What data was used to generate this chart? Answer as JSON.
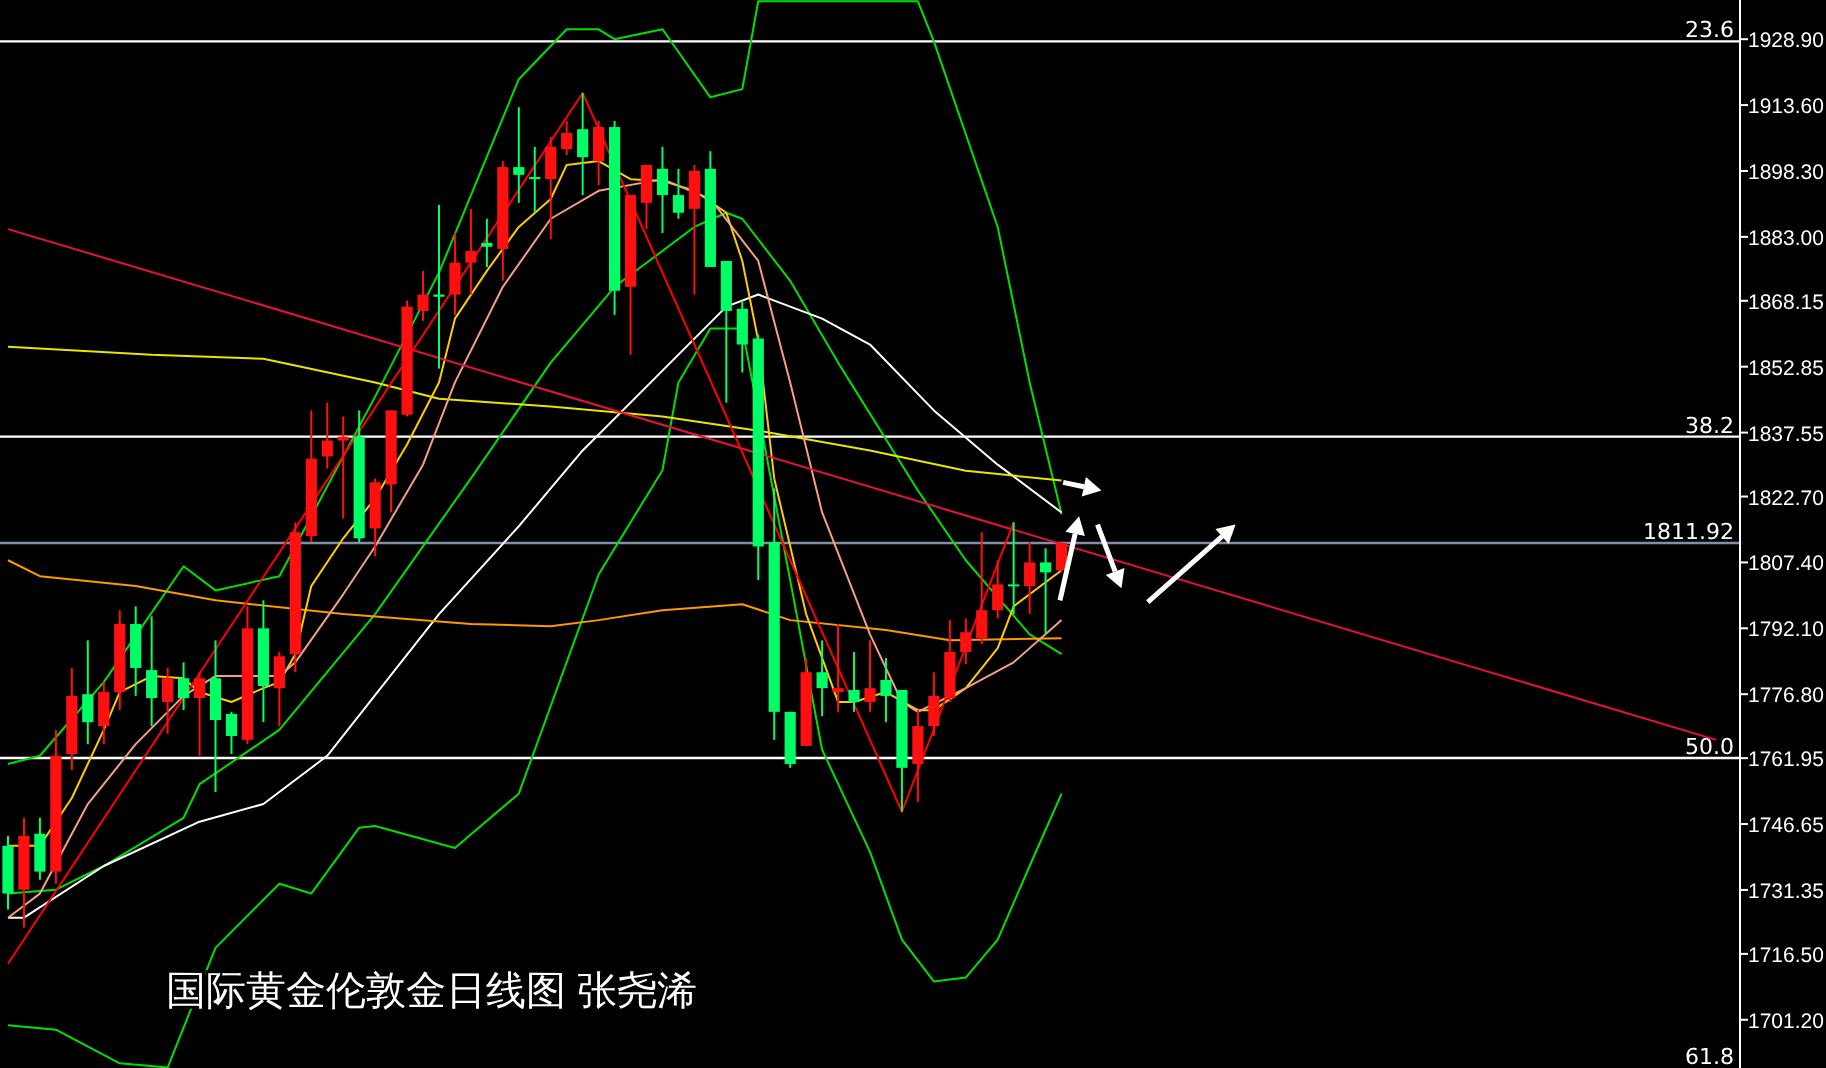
{
  "chart_data": {
    "type": "candlestick",
    "title": "国际黄金伦敦金日线图 张尧浠",
    "categories": [
      null,
      null,
      null,
      null,
      null,
      null,
      null,
      null,
      null,
      null,
      null,
      null,
      null,
      null,
      null,
      null,
      null,
      null,
      null,
      null,
      null,
      null,
      null,
      null,
      null,
      null,
      null,
      null,
      null,
      null,
      null,
      null,
      null,
      null,
      null,
      null,
      null,
      null,
      null,
      null,
      null,
      null,
      null,
      null,
      null,
      null,
      null,
      null,
      null,
      null,
      null,
      null,
      null,
      null,
      null,
      null,
      null,
      null,
      null,
      null,
      null,
      null,
      null,
      null,
      null,
      null,
      null,
      null,
      null,
      null,
      null,
      null,
      null,
      null,
      null,
      null,
      null,
      null,
      null,
      null,
      null,
      null,
      null,
      null,
      null,
      null,
      null,
      null,
      null,
      null,
      null,
      null,
      null,
      null,
      null,
      null,
      null,
      null,
      null,
      null,
      null,
      null,
      null,
      null,
      null,
      null,
      null,
      null,
      null
    ],
    "ohlc": [
      [
        1741.6,
        1743.9,
        1726.8,
        1730.5
      ],
      [
        1731.4,
        1748.1,
        1722.6,
        1743.9
      ],
      [
        1744.4,
        1748.1,
        1733.7,
        1735.6
      ],
      [
        1735.6,
        1768.5,
        1732.8,
        1762.5
      ],
      [
        1762.9,
        1782.9,
        1759.2,
        1776.4
      ],
      [
        1776.8,
        1789.3,
        1765.2,
        1770.3
      ],
      [
        1769.4,
        1779.6,
        1765.2,
        1777.3
      ],
      [
        1777.3,
        1796.3,
        1773.1,
        1793.1
      ],
      [
        1793.1,
        1797.2,
        1776.4,
        1782.9
      ],
      [
        1782.4,
        1794.9,
        1769.4,
        1775.9
      ],
      [
        1775.0,
        1782.9,
        1767.6,
        1780.5
      ],
      [
        1780.5,
        1784.2,
        1773.1,
        1775.9
      ],
      [
        1775.9,
        1781.9,
        1762.5,
        1780.5
      ],
      [
        1780.5,
        1789.3,
        1754.1,
        1770.8
      ],
      [
        1772.2,
        1772.7,
        1762.9,
        1767.1
      ],
      [
        1766.2,
        1797.2,
        1765.2,
        1792.1
      ],
      [
        1792.1,
        1798.6,
        1770.3,
        1778.7
      ],
      [
        1778.2,
        1786.6,
        1769.4,
        1785.6
      ],
      [
        1786.1,
        1816.7,
        1781.9,
        1814.4
      ],
      [
        1813.5,
        1842.7,
        1812.1,
        1831.5
      ],
      [
        1832.0,
        1844.5,
        1829.2,
        1835.7
      ],
      [
        1835.7,
        1841.3,
        1817.6,
        1836.6
      ],
      [
        1836.6,
        1842.7,
        1812.1,
        1813.0
      ],
      [
        1815.3,
        1826.9,
        1808.8,
        1826.0
      ],
      [
        1825.5,
        1842.7,
        1819.0,
        1842.7
      ],
      [
        1841.7,
        1868.2,
        1841.3,
        1866.8
      ],
      [
        1865.8,
        1875.1,
        1863.5,
        1869.6
      ],
      [
        1869.6,
        1890.4,
        1852.4,
        1869.1
      ],
      [
        1869.6,
        1883.9,
        1864.9,
        1877.0
      ],
      [
        1877.0,
        1889.5,
        1869.6,
        1879.7
      ],
      [
        1881.6,
        1887.2,
        1876.0,
        1880.7
      ],
      [
        1880.2,
        1900.6,
        1872.8,
        1899.2
      ],
      [
        1899.2,
        1913.1,
        1890.9,
        1897.4
      ],
      [
        1896.9,
        1903.9,
        1888.6,
        1896.4
      ],
      [
        1896.4,
        1906.2,
        1882.5,
        1903.9
      ],
      [
        1903.4,
        1909.9,
        1902.0,
        1907.1
      ],
      [
        1908.0,
        1916.4,
        1892.7,
        1901.5
      ],
      [
        1900.6,
        1909.9,
        1895.0,
        1908.5
      ],
      [
        1908.5,
        1909.9,
        1864.9,
        1870.5
      ],
      [
        1871.4,
        1892.7,
        1855.6,
        1892.7
      ],
      [
        1890.9,
        1899.7,
        1884.8,
        1899.7
      ],
      [
        1898.8,
        1903.9,
        1883.9,
        1892.7
      ],
      [
        1892.7,
        1898.8,
        1887.2,
        1888.6
      ],
      [
        1889.5,
        1899.7,
        1869.6,
        1898.3
      ],
      [
        1898.8,
        1902.9,
        1876.0,
        1876.0
      ],
      [
        1877.4,
        1877.4,
        1844.5,
        1865.8
      ],
      [
        1866.3,
        1868.2,
        1851.5,
        1858.0
      ],
      [
        1859.4,
        1860.3,
        1803.3,
        1811.1
      ],
      [
        1812.1,
        1824.6,
        1766.2,
        1772.7
      ],
      [
        1772.7,
        1772.7,
        1759.7,
        1760.6
      ],
      [
        1764.8,
        1785.2,
        1764.8,
        1781.9
      ],
      [
        1781.9,
        1789.3,
        1771.7,
        1778.2
      ],
      [
        1777.3,
        1793.1,
        1772.7,
        1778.2
      ],
      [
        1777.8,
        1786.6,
        1772.7,
        1775.0
      ],
      [
        1775.0,
        1789.3,
        1772.7,
        1778.2
      ],
      [
        1780.1,
        1785.2,
        1770.3,
        1776.4
      ],
      [
        1777.8,
        1777.8,
        1749.5,
        1759.7
      ],
      [
        1760.6,
        1773.1,
        1751.8,
        1769.4
      ],
      [
        1769.4,
        1781.9,
        1767.1,
        1776.4
      ],
      [
        1775.9,
        1794.0,
        1775.0,
        1786.6
      ],
      [
        1786.6,
        1794.4,
        1783.8,
        1791.2
      ],
      [
        1789.8,
        1814.4,
        1788.4,
        1796.3
      ],
      [
        1796.3,
        1807.9,
        1794.4,
        1802.3
      ],
      [
        1802.3,
        1816.7,
        1795.4,
        1801.9
      ],
      [
        1801.9,
        1812.1,
        1795.4,
        1807.4
      ],
      [
        1807.4,
        1810.7,
        1790.7,
        1805.1
      ],
      [
        1805.6,
        1812.1,
        1805.1,
        1811.9
      ],
      null,
      null,
      null,
      null,
      null,
      null,
      null,
      null,
      null,
      null,
      null,
      null,
      null,
      null,
      null,
      null,
      null,
      null,
      null,
      null,
      null,
      null,
      null,
      null,
      null,
      null,
      null,
      null,
      null,
      null,
      null,
      null,
      null,
      null,
      null,
      null,
      null,
      null,
      null,
      null,
      null,
      null
    ],
    "series": [
      {
        "type": "line",
        "color": "#00e000",
        "values": [
          1760.6,
          null,
          1762.5,
          null,
          null,
          null,
          1779.6,
          null,
          null,
          null,
          null,
          1806.5,
          null,
          1800.9,
          null,
          null,
          null,
          1804.2,
          null,
          null,
          null,
          null,
          null,
          1845.9,
          null,
          null,
          null,
          1874.7,
          null,
          null,
          null,
          null,
          1919.6,
          null,
          null,
          1931.2,
          null,
          1931.2,
          1928.9,
          null,
          null,
          1931.2,
          null,
          null,
          1915.4,
          null,
          1917.3,
          1937.7,
          null,
          null,
          null,
          null,
          null,
          null,
          null,
          null,
          null,
          1937.7,
          1928.4,
          null,
          null,
          null,
          1885.3,
          null,
          1849.2,
          null,
          1818.6,
          null,
          null,
          null,
          null,
          null,
          null,
          null,
          null,
          null,
          null,
          null,
          null,
          null,
          null,
          null,
          null,
          null,
          null,
          null,
          null,
          null,
          null,
          null,
          null,
          null,
          null,
          null,
          null,
          null,
          null,
          null,
          null,
          null,
          null,
          null,
          null,
          null,
          null,
          null,
          null,
          null,
          null
        ]
      },
      {
        "type": "line",
        "color": "#00e000",
        "values": [
          1730.5,
          null,
          null,
          1731.4,
          null,
          null,
          1736.9,
          null,
          null,
          null,
          null,
          1748.1,
          1755.9,
          null,
          null,
          null,
          null,
          1768.5,
          null,
          null,
          null,
          null,
          null,
          1795.4,
          null,
          null,
          null,
          null,
          null,
          1826.9,
          null,
          null,
          null,
          null,
          1853.8,
          null,
          null,
          null,
          1871.4,
          null,
          null,
          null,
          null,
          1885.3,
          null,
          1888.6,
          1887.2,
          null,
          null,
          1872.8,
          null,
          null,
          1853.8,
          null,
          null,
          null,
          null,
          1824.1,
          null,
          null,
          1807.9,
          null,
          null,
          null,
          1790.7,
          null,
          1786.1,
          null,
          null,
          null,
          null,
          null,
          null,
          null,
          null,
          null,
          null,
          null,
          null,
          null,
          null,
          null,
          null,
          null,
          null,
          null,
          null,
          null,
          null,
          null,
          null,
          null,
          null,
          null,
          null,
          null,
          null,
          null,
          null,
          null,
          null,
          null,
          null,
          null,
          null,
          null,
          null,
          null,
          null
        ]
      },
      {
        "type": "line",
        "color": "#00e000",
        "values": [
          1699.9,
          null,
          null,
          1698.9,
          null,
          null,
          null,
          1691.1,
          null,
          null,
          1690.1,
          null,
          null,
          1717.9,
          null,
          null,
          null,
          1732.8,
          null,
          1730.5,
          null,
          null,
          1745.8,
          1746.2,
          null,
          null,
          null,
          null,
          1741.1,
          null,
          null,
          null,
          1753.7,
          null,
          null,
          null,
          null,
          1804.6,
          null,
          null,
          null,
          1828.8,
          1849.2,
          null,
          1861.7,
          null,
          1861.7,
          null,
          null,
          1803.3,
          null,
          1763.9,
          null,
          null,
          1740.2,
          null,
          1719.8,
          null,
          1710.1,
          null,
          1711.0,
          null,
          1719.8,
          null,
          1736.9,
          null,
          1753.7,
          null,
          null,
          null,
          null,
          null,
          null,
          null,
          null,
          null,
          null,
          null,
          null,
          null,
          null,
          null,
          null,
          null,
          null,
          null,
          null,
          null,
          null,
          null,
          null,
          null,
          null,
          null,
          null,
          null,
          null,
          null,
          null,
          null,
          null,
          null,
          null,
          null,
          null,
          null,
          null,
          null,
          null
        ]
      },
      {
        "type": "line",
        "color": "#ffffff",
        "values": [
          1724.9,
          1724.9,
          null,
          null,
          null,
          null,
          1736.9,
          null,
          null,
          null,
          null,
          null,
          1747.2,
          null,
          null,
          null,
          1751.3,
          null,
          null,
          null,
          1762.5,
          null,
          null,
          null,
          null,
          null,
          null,
          1795.4,
          null,
          null,
          null,
          null,
          1815.8,
          null,
          null,
          null,
          1833.4,
          null,
          null,
          1844.5,
          null,
          null,
          null,
          null,
          null,
          1866.8,
          null,
          1869.6,
          null,
          null,
          null,
          1864.0,
          null,
          null,
          1858.0,
          null,
          null,
          null,
          1842.7,
          null,
          null,
          null,
          1830.1,
          null,
          null,
          null,
          1819.0,
          null,
          null,
          null,
          null,
          null,
          null,
          null,
          null,
          null,
          null,
          null,
          null,
          null,
          null,
          null,
          null,
          null,
          null,
          null,
          null,
          null,
          null,
          null,
          null,
          null,
          null,
          null,
          null,
          null,
          null,
          null,
          null,
          null,
          null,
          null,
          null,
          null,
          null,
          null,
          null,
          null,
          null
        ]
      },
      {
        "type": "line",
        "color": "#e6e600",
        "values": [
          1857.5,
          null,
          null,
          null,
          null,
          null,
          null,
          null,
          null,
          1855.6,
          null,
          null,
          null,
          null,
          null,
          null,
          1854.7,
          null,
          null,
          null,
          null,
          null,
          null,
          1849.2,
          null,
          null,
          null,
          1845.4,
          null,
          null,
          null,
          null,
          null,
          null,
          1843.6,
          null,
          null,
          null,
          null,
          null,
          null,
          1841.3,
          null,
          null,
          null,
          null,
          null,
          1838.0,
          null,
          null,
          null,
          null,
          null,
          null,
          1833.4,
          null,
          null,
          null,
          null,
          null,
          1828.7,
          null,
          null,
          null,
          null,
          null,
          1826.4,
          null,
          null,
          null,
          null,
          null,
          null,
          null,
          null,
          null,
          null,
          null,
          null,
          null,
          null,
          null,
          null,
          null,
          null,
          null,
          null,
          null,
          null,
          null,
          null,
          null,
          null,
          null,
          null,
          null,
          null,
          null,
          null,
          null,
          null,
          null,
          null,
          null,
          null,
          null,
          null,
          null,
          null
        ]
      },
      {
        "type": "line",
        "color": "#ff9900",
        "values": [
          1807.9,
          null,
          1804.2,
          null,
          null,
          null,
          null,
          null,
          1801.9,
          null,
          null,
          null,
          null,
          1798.6,
          null,
          null,
          null,
          null,
          null,
          null,
          null,
          1795.4,
          null,
          null,
          null,
          null,
          null,
          null,
          null,
          1793.1,
          null,
          null,
          null,
          null,
          1792.6,
          null,
          null,
          1794.0,
          null,
          null,
          null,
          1796.3,
          null,
          null,
          null,
          null,
          1797.7,
          null,
          null,
          1794.0,
          null,
          null,
          null,
          null,
          null,
          1791.7,
          null,
          null,
          null,
          1789.3,
          null,
          null,
          null,
          null,
          null,
          null,
          1789.8,
          null,
          null,
          null,
          null,
          null,
          null,
          null,
          null,
          null,
          null,
          null,
          null,
          null,
          null,
          null,
          null,
          null,
          null,
          null,
          null,
          null,
          null,
          null,
          null,
          null,
          null,
          null,
          null,
          null,
          null,
          null,
          null,
          null,
          null,
          null,
          null,
          null,
          null,
          null,
          null,
          null,
          null
        ]
      },
      {
        "type": "line",
        "color": "#ffcc00",
        "values": [
          1741.6,
          null,
          1741.6,
          null,
          1752.7,
          null,
          1768.5,
          1777.3,
          null,
          1781.0,
          null,
          1780.5,
          1777.3,
          null,
          1775.0,
          null,
          1778.2,
          1779.6,
          1786.1,
          1801.9,
          null,
          1813.0,
          null,
          1822.3,
          null,
          1834.8,
          null,
          1849.2,
          1864.0,
          null,
          1875.1,
          null,
          1885.3,
          null,
          1891.8,
          1899.7,
          null,
          1900.6,
          null,
          1896.4,
          null,
          1896.0,
          null,
          1893.7,
          null,
          1888.6,
          1877.4,
          1858.9,
          1826.9,
          null,
          1795.4,
          null,
          1775.0,
          1775.0,
          null,
          1777.3,
          null,
          1773.1,
          1773.1,
          null,
          1778.2,
          null,
          1787.5,
          1797.2,
          null,
          null,
          1805.6,
          null,
          null,
          null,
          null,
          null,
          null,
          null,
          null,
          null,
          null,
          null,
          null,
          null,
          null,
          null,
          null,
          null,
          null,
          null,
          null,
          null,
          null,
          null,
          null,
          null,
          null,
          null,
          null,
          null,
          null,
          null,
          null,
          null,
          null,
          null,
          null,
          null,
          null,
          null,
          null,
          null,
          null
        ]
      },
      {
        "type": "line",
        "color": "#f4a080",
        "values": [
          1724.9,
          null,
          1730.5,
          null,
          null,
          1751.3,
          null,
          null,
          1765.2,
          null,
          null,
          1776.4,
          null,
          1781.0,
          null,
          null,
          null,
          1781.0,
          1784.2,
          null,
          null,
          1800.0,
          null,
          1811.1,
          null,
          null,
          1830.1,
          null,
          1849.2,
          null,
          null,
          1871.4,
          null,
          null,
          1887.2,
          null,
          null,
          1893.7,
          null,
          null,
          null,
          1896.4,
          null,
          null,
          1891.8,
          null,
          null,
          1877.4,
          null,
          1849.2,
          null,
          1819.0,
          null,
          null,
          1790.7,
          null,
          1775.0,
          1772.7,
          null,
          null,
          1778.2,
          null,
          null,
          1784.2,
          null,
          null,
          1794.0,
          null,
          null,
          null,
          null,
          null,
          null,
          null,
          null,
          null,
          null,
          null,
          null,
          null,
          null,
          null,
          null,
          null,
          null,
          null,
          null,
          null,
          null,
          null,
          null,
          null,
          null,
          null,
          null,
          null,
          null,
          null,
          null,
          null,
          null,
          null,
          null,
          null,
          null,
          null,
          null,
          null,
          null
        ]
      },
      {
        "type": "line",
        "color": "#e8103c",
        "values": [
          1884.8,
          null,
          null,
          null,
          null,
          null,
          null,
          null,
          null,
          null,
          null,
          null,
          null,
          null,
          null,
          null,
          null,
          null,
          null,
          null,
          null,
          null,
          null,
          null,
          null,
          null,
          null,
          null,
          null,
          null,
          null,
          null,
          null,
          null,
          null,
          null,
          null,
          null,
          null,
          null,
          null,
          null,
          null,
          null,
          null,
          null,
          null,
          null,
          null,
          null,
          null,
          null,
          null,
          null,
          null,
          null,
          null,
          null,
          null,
          null,
          null,
          null,
          null,
          null,
          null,
          null,
          null,
          null,
          null,
          null,
          null,
          null,
          null,
          null,
          null,
          null,
          null,
          null,
          null,
          null,
          null,
          null,
          null,
          null,
          null,
          null,
          null,
          null,
          null,
          null,
          null,
          null,
          null,
          null,
          null,
          null,
          null,
          null,
          null,
          null,
          null,
          null,
          null,
          null,
          null,
          null,
          null,
          1766.2,
          null
        ]
      },
      {
        "type": "line",
        "color": "#ff0000",
        "values": [
          1714.2,
          null,
          null,
          null,
          null,
          null,
          null,
          null,
          null,
          null,
          null,
          null,
          null,
          null,
          null,
          null,
          null,
          null,
          null,
          null,
          null,
          null,
          null,
          null,
          null,
          null,
          null,
          null,
          null,
          null,
          null,
          null,
          null,
          null,
          null,
          null,
          1916.4,
          null,
          null,
          null,
          null,
          null,
          null,
          null,
          null,
          null,
          null,
          null,
          null,
          null,
          null,
          null,
          null,
          null,
          null,
          null,
          1749.5,
          null,
          null,
          null,
          null,
          null,
          null,
          1816.7,
          null,
          null,
          null,
          null,
          null,
          null,
          null,
          null,
          null,
          null,
          null,
          null,
          null,
          null,
          null,
          null,
          null,
          null,
          null,
          null,
          null,
          null,
          null,
          null,
          null,
          null,
          null,
          null,
          null,
          null,
          null,
          null,
          null,
          null,
          null,
          null,
          null,
          null,
          null,
          null,
          null,
          null,
          null,
          null,
          null
        ]
      }
    ],
    "ylim": [
      1690,
      1938
    ],
    "yticks": [
      {
        "value": 1928.9,
        "label": "1928.90"
      },
      {
        "value": 1913.6,
        "label": "1913.60"
      },
      {
        "value": 1898.3,
        "label": "1898.30"
      },
      {
        "value": 1883.0,
        "label": "1883.00"
      },
      {
        "value": 1868.15,
        "label": "1868.15"
      },
      {
        "value": 1852.85,
        "label": "1852.85"
      },
      {
        "value": 1837.55,
        "label": "1837.55"
      },
      {
        "value": 1822.7,
        "label": "1822.70"
      },
      {
        "value": 1807.4,
        "label": "1807.40"
      },
      {
        "value": 1792.1,
        "label": "1792.10"
      },
      {
        "value": 1776.8,
        "label": "1776.80"
      },
      {
        "value": 1761.95,
        "label": "1761.95"
      },
      {
        "value": 1746.65,
        "label": "1746.65"
      },
      {
        "value": 1731.35,
        "label": "1731.35"
      },
      {
        "value": 1716.5,
        "label": "1716.50"
      },
      {
        "value": 1701.2,
        "label": "1701.20"
      }
    ],
    "tick_labels": "y",
    "ref_lines": [
      {
        "axis": "y",
        "value": 1928.4,
        "color": "#ffffff"
      },
      {
        "axis": "y",
        "value": 1836.6,
        "color": "#ffffff"
      },
      {
        "axis": "y",
        "value": 1811.92,
        "label": "1811.92",
        "color": "#8090a8"
      },
      {
        "axis": "y",
        "value": 1762.0,
        "color": "#ffffff"
      }
    ],
    "annotations": [
      "23.6",
      "38.2",
      "50.0",
      "61.8"
    ]
  }
}
